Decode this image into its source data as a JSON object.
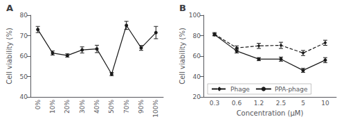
{
  "chart_data": [
    {
      "type": "line",
      "title": "A",
      "categories": [
        "0%",
        "10%",
        "20%",
        "30%",
        "40%",
        "50%",
        "70%",
        "90%",
        "100%"
      ],
      "values": [
        73.0,
        61.5,
        60.3,
        63.0,
        63.5,
        51.2,
        75.0,
        64.0,
        71.5
      ],
      "errors": [
        1.5,
        1.0,
        0.8,
        1.5,
        1.8,
        0.8,
        2.0,
        1.2,
        3.0
      ],
      "ylabel": "Cell viability (%)",
      "ylim": [
        40,
        80
      ],
      "yticks": [
        40,
        50,
        60,
        70,
        80
      ],
      "color": "#1a1a1a",
      "marker": "circle",
      "line_style": "solid",
      "grid": false
    },
    {
      "type": "line",
      "title": "B",
      "categories": [
        "0.3",
        "0.6",
        "1.2",
        "2.5",
        "5",
        "10"
      ],
      "series": [
        {
          "name": "Phage",
          "values": [
            81.5,
            68.0,
            70.0,
            70.5,
            63.0,
            73.0
          ],
          "errors": [
            1.5,
            2.0,
            2.5,
            3.0,
            2.5,
            2.5
          ],
          "color": "#1a1a1a",
          "marker": "diamond",
          "line_style": "dashed"
        },
        {
          "name": "PPA-phage",
          "values": [
            81.0,
            65.0,
            57.0,
            57.0,
            46.0,
            56.0
          ],
          "errors": [
            1.2,
            2.0,
            1.5,
            2.0,
            2.0,
            2.5
          ],
          "color": "#1a1a1a",
          "marker": "circle",
          "line_style": "solid"
        }
      ],
      "xlabel": "Concentration (μM)",
      "ylabel": "Cell viability (%)",
      "ylim": [
        20,
        100
      ],
      "yticks": [
        20,
        40,
        60,
        80,
        100
      ],
      "legend": "lower left",
      "grid": false
    }
  ]
}
